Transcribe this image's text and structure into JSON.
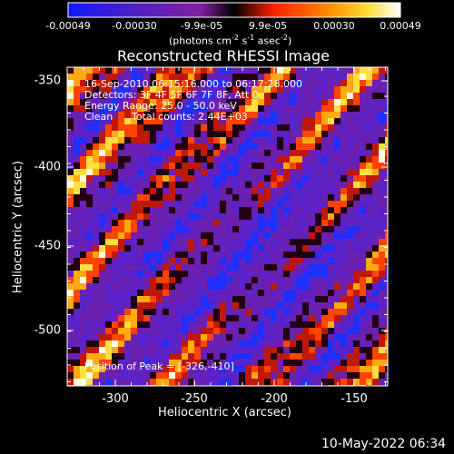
{
  "colorbar": {
    "ticks": [
      "-0.00049",
      "-0.00030",
      "-9.9e-05",
      "9.9e-05",
      "0.00030",
      "0.00049"
    ],
    "units_label": "(photons cm",
    "units_exp1": "-2",
    "units_mid": " s",
    "units_exp2": "-1",
    "units_mid2": " asec",
    "units_exp3": "-2",
    "units_end": ")",
    "colors": [
      "#1018ff",
      "#5020c8",
      "#8020a0",
      "#000000",
      "#ff2000",
      "#ff8800",
      "#ffdd33",
      "#ffffff"
    ]
  },
  "title": "Reconstructed RHESSI Image",
  "annotations": {
    "line1": "16-Sep-2010 06:15:16.000 to 06:17:28.000",
    "line2": "Detectors: 3F 4F 5F 6F 7F 8F, Att 0",
    "line3": "Energy Range: 25.0 - 50.0 keV",
    "line4_a": "Clean",
    "line4_b": "Total counts: 2.44E+03",
    "peak": "Position of Peak = [-326,-410]"
  },
  "axes": {
    "xlabel": "Heliocentric X (arcsec)",
    "ylabel": "Heliocentric Y (arcsec)",
    "xticks": [
      "-300",
      "-250",
      "-200",
      "-150"
    ],
    "yticks": [
      "-350",
      "-400",
      "-450",
      "-500"
    ]
  },
  "footer": {
    "date": "10-May-2022 06:34"
  }
}
